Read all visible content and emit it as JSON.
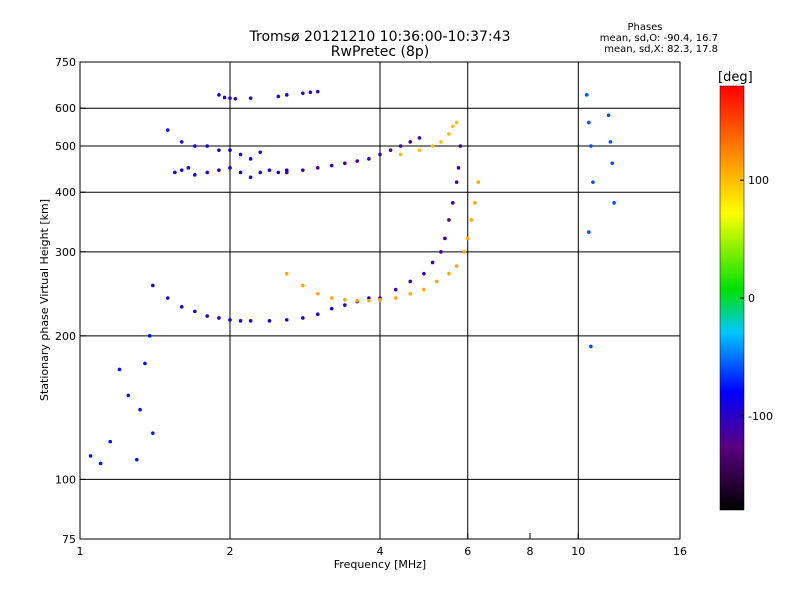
{
  "header": {
    "title_line1": "Tromsø 20121210 10:36:00-10:37:43",
    "title_line2": "RwPretec (8p)"
  },
  "stats": {
    "heading": "Phases",
    "line_o": "mean, sd,O: -90.4, 16.7",
    "line_x": "mean, sd,X:  82.3, 17.8"
  },
  "colorbar": {
    "unit": "[deg]",
    "range": [
      -180,
      180
    ],
    "ticks": [
      {
        "value": 100,
        "label": "100"
      },
      {
        "value": 0,
        "label": "0"
      },
      {
        "value": -100,
        "label": "-100"
      }
    ]
  },
  "chart_data": {
    "type": "scatter",
    "xlabel": "Frequency [MHz]",
    "ylabel": "Stationary phase Virtual Height [km]",
    "x_scale": "log",
    "y_scale": "log",
    "xlim": [
      1,
      16
    ],
    "ylim": [
      75,
      750
    ],
    "grid": true,
    "x_ticks": [
      {
        "value": 1,
        "label": "1"
      },
      {
        "value": 2,
        "label": "2"
      },
      {
        "value": 4,
        "label": "4"
      },
      {
        "value": 6,
        "label": "6"
      },
      {
        "value": 8,
        "label": "8"
      },
      {
        "value": 10,
        "label": "10"
      },
      {
        "value": 16,
        "label": "16"
      }
    ],
    "x_gridlines": [
      2,
      4,
      6,
      10
    ],
    "y_ticks": [
      {
        "value": 75,
        "label": "75"
      },
      {
        "value": 100,
        "label": "100"
      },
      {
        "value": 200,
        "label": "200"
      },
      {
        "value": 300,
        "label": "300"
      },
      {
        "value": 400,
        "label": "400"
      },
      {
        "value": 500,
        "label": "500"
      },
      {
        "value": 600,
        "label": "600"
      },
      {
        "value": 750,
        "label": "750"
      }
    ],
    "y_gridlines": [
      100,
      200,
      300,
      400,
      500,
      600
    ],
    "series": [
      {
        "x": [
          1.05,
          1.1,
          1.15,
          1.2,
          1.25,
          1.3,
          1.32,
          1.35,
          1.38,
          1.4
        ],
        "y": [
          112,
          108,
          120,
          170,
          150,
          110,
          140,
          175,
          200,
          125
        ],
        "phase": -75
      },
      {
        "x": [
          1.55,
          1.6,
          1.65,
          1.7,
          1.8,
          1.9,
          2.0,
          2.1,
          2.2,
          2.3,
          2.4,
          2.5,
          2.6
        ],
        "y": [
          440,
          445,
          450,
          435,
          440,
          445,
          450,
          440,
          430,
          440,
          445,
          440,
          445
        ],
        "phase": -95
      },
      {
        "x": [
          1.5,
          1.6,
          1.7,
          1.8,
          1.9,
          2.0,
          2.1,
          2.2,
          2.3
        ],
        "y": [
          540,
          510,
          500,
          500,
          490,
          490,
          480,
          470,
          485
        ],
        "phase": -90
      },
      {
        "x": [
          2.6,
          2.8,
          3.0,
          3.2,
          3.4,
          3.6,
          3.8,
          4.0,
          4.2,
          4.4,
          4.6,
          4.8
        ],
        "y": [
          440,
          445,
          450,
          455,
          460,
          465,
          470,
          480,
          490,
          500,
          510,
          520
        ],
        "phase": -110
      },
      {
        "x": [
          4.4,
          4.8,
          5.1,
          5.3,
          5.5,
          5.6,
          5.7
        ],
        "y": [
          480,
          490,
          500,
          510,
          530,
          550,
          560
        ],
        "phase": 100
      },
      {
        "x": [
          1.4,
          1.5,
          1.6,
          1.7,
          1.8,
          1.9,
          2.0,
          2.1,
          2.2,
          2.4,
          2.6,
          2.8,
          3.0,
          3.2,
          3.4,
          3.6,
          3.8
        ],
        "y": [
          255,
          240,
          230,
          225,
          220,
          218,
          216,
          215,
          215,
          215,
          216,
          218,
          222,
          228,
          232,
          236,
          240
        ],
        "phase": -95
      },
      {
        "x": [
          2.6,
          2.8,
          3.0,
          3.2,
          3.4,
          3.6,
          3.8,
          4.0
        ],
        "y": [
          270,
          255,
          245,
          240,
          238,
          237,
          237,
          238
        ],
        "phase": 110
      },
      {
        "x": [
          4.0,
          4.3,
          4.6,
          4.9,
          5.1,
          5.3,
          5.4,
          5.5,
          5.6,
          5.7,
          5.75,
          5.8
        ],
        "y": [
          240,
          250,
          260,
          270,
          285,
          300,
          320,
          350,
          380,
          420,
          450,
          500
        ],
        "phase": -110
      },
      {
        "x": [
          4.0,
          4.3,
          4.6,
          4.9,
          5.2,
          5.5,
          5.7,
          5.9,
          6.0,
          6.1,
          6.2,
          6.3
        ],
        "y": [
          238,
          240,
          245,
          250,
          260,
          270,
          280,
          300,
          320,
          350,
          380,
          420
        ],
        "phase": 110
      },
      {
        "x": [
          1.9,
          1.95,
          2.0,
          2.05,
          2.2,
          2.5,
          2.6,
          2.8,
          2.9,
          3.0
        ],
        "y": [
          640,
          632,
          630,
          628,
          630,
          635,
          640,
          645,
          648,
          650
        ],
        "phase": -100
      },
      {
        "x": [
          10.4,
          10.5,
          10.6,
          10.7,
          11.5,
          11.6,
          11.7,
          11.8,
          10.5,
          10.6
        ],
        "y": [
          640,
          560,
          500,
          420,
          580,
          510,
          460,
          380,
          330,
          190
        ],
        "phase": -60
      }
    ]
  }
}
